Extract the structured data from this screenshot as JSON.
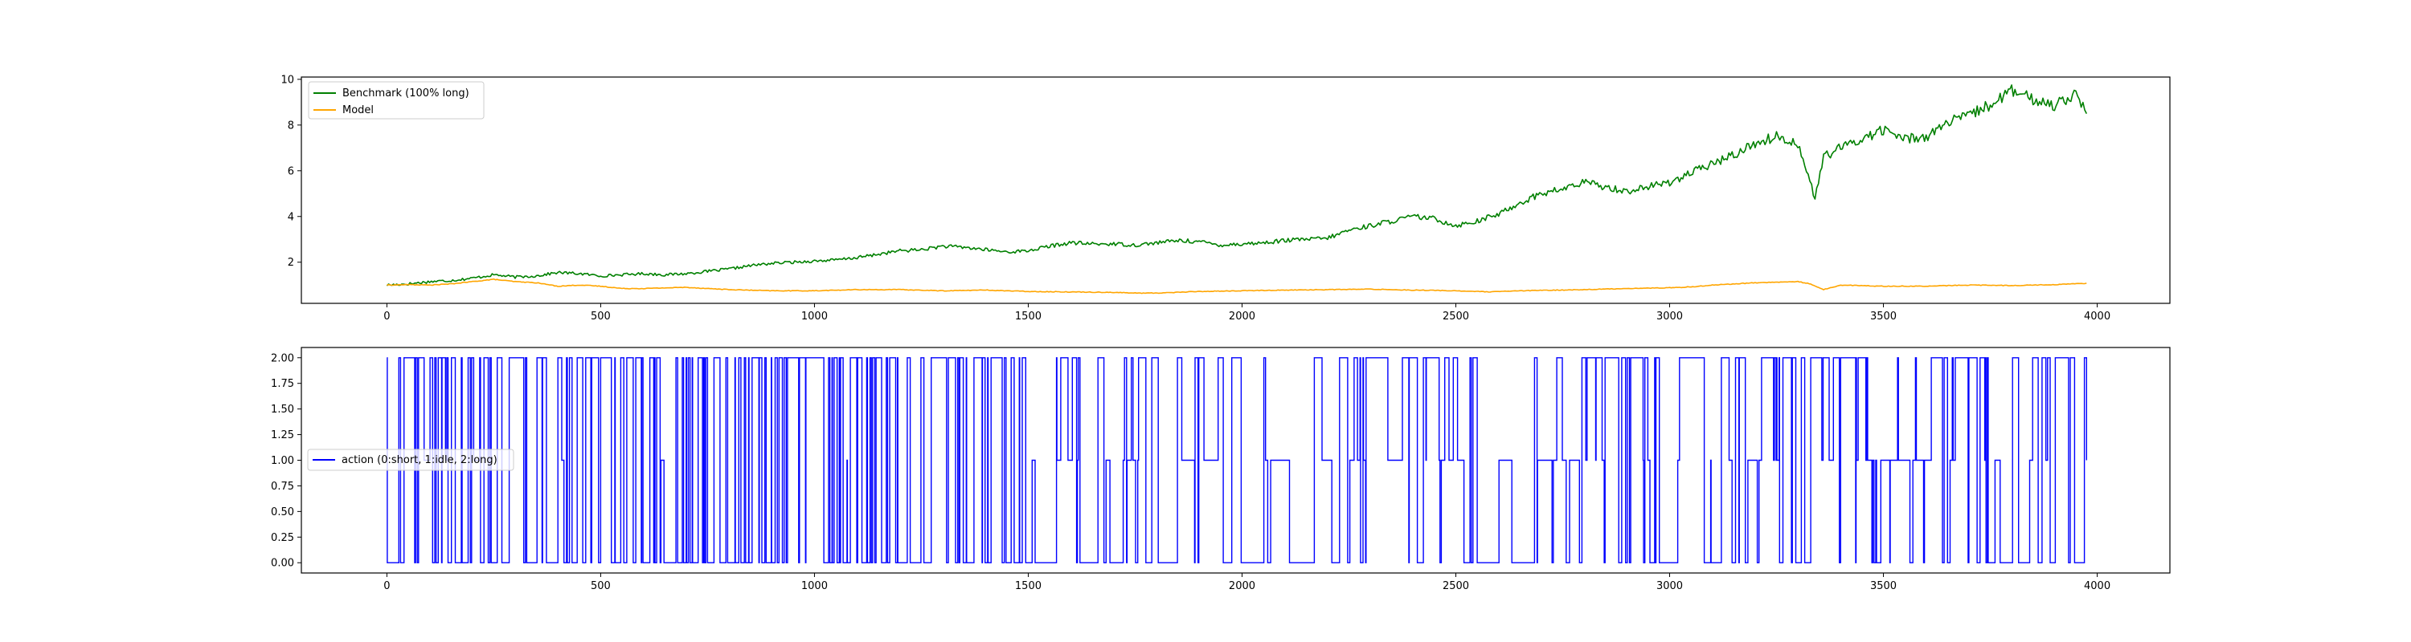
{
  "chart_data": [
    {
      "type": "line",
      "title": "",
      "xlabel": "",
      "ylabel": "",
      "xlim": [
        -200,
        4170
      ],
      "ylim": [
        0.2,
        10.1
      ],
      "xticks": [
        0,
        500,
        1000,
        1500,
        2000,
        2500,
        3000,
        3500,
        4000
      ],
      "yticks": [
        2,
        4,
        6,
        8,
        10
      ],
      "grid": false,
      "legend_loc": "upper left",
      "series": [
        {
          "name": "Benchmark (100% long)",
          "color": "#008000",
          "x": [
            0,
            50,
            100,
            150,
            200,
            250,
            300,
            350,
            400,
            450,
            500,
            550,
            600,
            650,
            700,
            750,
            800,
            850,
            900,
            950,
            1000,
            1050,
            1100,
            1150,
            1200,
            1250,
            1300,
            1350,
            1400,
            1450,
            1500,
            1550,
            1600,
            1650,
            1700,
            1750,
            1800,
            1850,
            1900,
            1950,
            2000,
            2050,
            2100,
            2150,
            2200,
            2250,
            2300,
            2350,
            2400,
            2450,
            2500,
            2550,
            2600,
            2650,
            2700,
            2750,
            2800,
            2850,
            2900,
            2950,
            3000,
            3050,
            3100,
            3150,
            3200,
            3250,
            3300,
            3320,
            3340,
            3360,
            3400,
            3450,
            3500,
            3550,
            3600,
            3650,
            3700,
            3750,
            3800,
            3850,
            3900,
            3950,
            3975
          ],
          "values": [
            1.0,
            1.05,
            1.15,
            1.2,
            1.3,
            1.45,
            1.35,
            1.4,
            1.55,
            1.5,
            1.4,
            1.45,
            1.5,
            1.45,
            1.5,
            1.6,
            1.7,
            1.85,
            1.95,
            2.0,
            2.05,
            2.1,
            2.2,
            2.35,
            2.5,
            2.55,
            2.7,
            2.65,
            2.55,
            2.45,
            2.5,
            2.7,
            2.85,
            2.8,
            2.8,
            2.75,
            2.85,
            2.95,
            2.9,
            2.75,
            2.8,
            2.85,
            2.95,
            3.0,
            3.05,
            3.4,
            3.6,
            3.8,
            4.0,
            3.9,
            3.6,
            3.8,
            4.1,
            4.6,
            5.0,
            5.2,
            5.5,
            5.3,
            5.1,
            5.3,
            5.5,
            5.9,
            6.3,
            6.7,
            7.2,
            7.5,
            7.2,
            6.0,
            4.8,
            6.6,
            7.0,
            7.4,
            7.8,
            7.4,
            7.5,
            8.1,
            8.4,
            8.9,
            9.5,
            9.1,
            8.9,
            9.4,
            8.5
          ]
        },
        {
          "name": "Model",
          "color": "#ffa500",
          "x": [
            0,
            50,
            100,
            150,
            200,
            250,
            300,
            350,
            400,
            450,
            500,
            550,
            600,
            700,
            800,
            900,
            1000,
            1100,
            1200,
            1300,
            1400,
            1500,
            1600,
            1700,
            1750,
            1800,
            1900,
            2000,
            2100,
            2200,
            2300,
            2400,
            2500,
            2580,
            2650,
            2800,
            2900,
            3000,
            3050,
            3100,
            3200,
            3300,
            3330,
            3360,
            3400,
            3500,
            3600,
            3700,
            3800,
            3900,
            3975
          ],
          "values": [
            1.0,
            1.02,
            1.0,
            1.05,
            1.15,
            1.25,
            1.15,
            1.1,
            0.95,
            1.0,
            0.95,
            0.85,
            0.85,
            0.9,
            0.8,
            0.75,
            0.75,
            0.8,
            0.8,
            0.75,
            0.78,
            0.72,
            0.7,
            0.68,
            0.65,
            0.65,
            0.72,
            0.75,
            0.78,
            0.8,
            0.82,
            0.78,
            0.75,
            0.7,
            0.75,
            0.8,
            0.85,
            0.88,
            0.92,
            1.0,
            1.1,
            1.15,
            1.05,
            0.8,
            1.0,
            0.95,
            0.95,
            1.0,
            0.98,
            1.02,
            1.08
          ]
        }
      ]
    },
    {
      "type": "line",
      "title": "",
      "xlabel": "",
      "ylabel": "",
      "xlim": [
        -200,
        4170
      ],
      "ylim": [
        -0.1,
        2.1
      ],
      "xticks": [
        0,
        500,
        1000,
        1500,
        2000,
        2500,
        3000,
        3500,
        4000
      ],
      "yticks": [
        "0.00",
        "0.25",
        "0.50",
        "0.75",
        "1.00",
        "1.25",
        "1.50",
        "1.75",
        "2.00"
      ],
      "grid": false,
      "legend_loc": "center left",
      "step": true,
      "series": [
        {
          "name": "action (0:short, 1:idle, 2:long)",
          "color": "#0000ff",
          "x_start": 0,
          "x_end": 3975,
          "values_allowed": [
            0,
            1,
            2
          ],
          "segments": [
            {
              "from": 0,
              "to": 600,
              "pattern": "dense alternation between 0 and 2, occasional 1"
            },
            {
              "from": 600,
              "to": 900,
              "pattern": "dense alternation between 0 and 2"
            },
            {
              "from": 900,
              "to": 1500,
              "pattern": "dense alternation between 0 and 2"
            },
            {
              "from": 1500,
              "to": 2550,
              "pattern": "frequent switching among 0, 1, 2"
            },
            {
              "from": 2550,
              "to": 2600,
              "pattern": "held at 0"
            },
            {
              "from": 2600,
              "to": 3200,
              "pattern": "frequent switching, longer holds at 2 and 1"
            },
            {
              "from": 3200,
              "to": 3450,
              "pattern": "mostly 2 with switches"
            },
            {
              "from": 3450,
              "to": 3600,
              "pattern": "mostly 1"
            },
            {
              "from": 3600,
              "to": 3975,
              "pattern": "frequent switching, ends at 1"
            }
          ]
        }
      ]
    }
  ]
}
